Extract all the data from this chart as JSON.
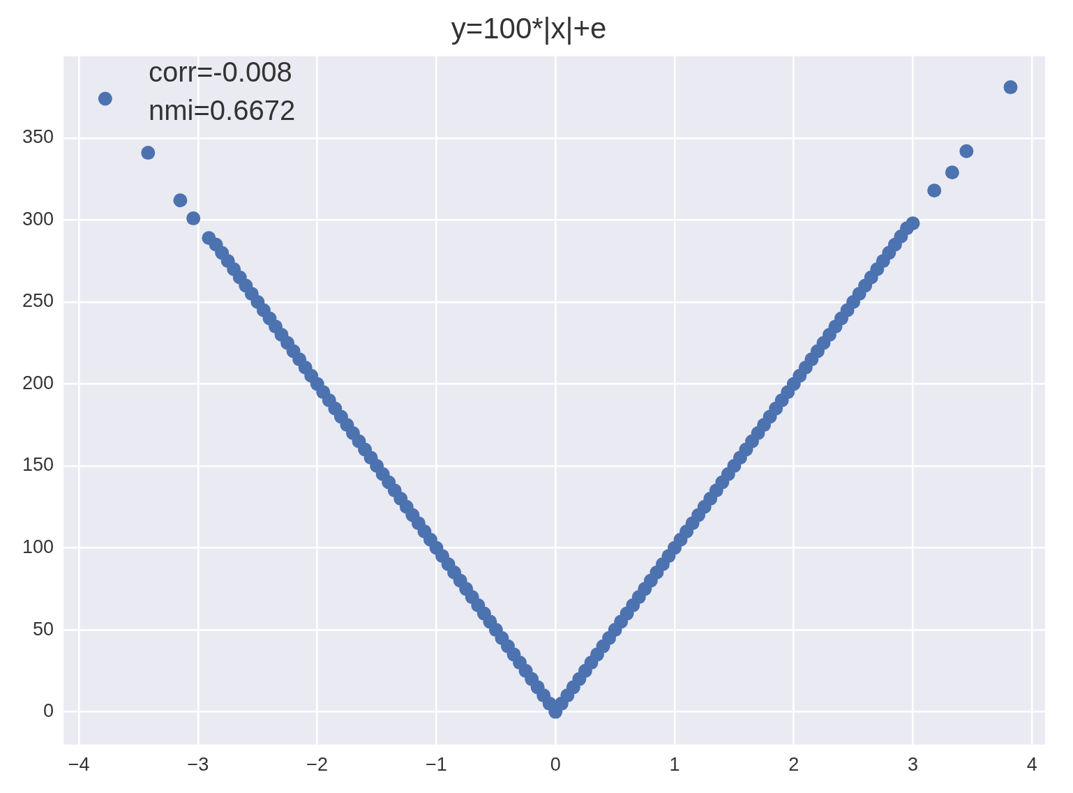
{
  "chart_data": {
    "type": "scatter",
    "title": "y=100*|x|+e",
    "annotations": [
      "corr=-0.008",
      "nmi=0.6672"
    ],
    "x": [
      -3.78,
      -3.42,
      -3.15,
      -3.04,
      -2.91,
      -2.85,
      -2.8,
      -2.75,
      -2.7,
      -2.65,
      -2.6,
      -2.55,
      -2.5,
      -2.45,
      -2.4,
      -2.35,
      -2.3,
      -2.25,
      -2.2,
      -2.15,
      -2.1,
      -2.05,
      -2.0,
      -1.95,
      -1.9,
      -1.85,
      -1.8,
      -1.75,
      -1.7,
      -1.65,
      -1.6,
      -1.55,
      -1.5,
      -1.45,
      -1.4,
      -1.35,
      -1.3,
      -1.25,
      -1.2,
      -1.15,
      -1.1,
      -1.05,
      -1.0,
      -0.95,
      -0.9,
      -0.85,
      -0.8,
      -0.75,
      -0.7,
      -0.65,
      -0.6,
      -0.55,
      -0.5,
      -0.45,
      -0.4,
      -0.35,
      -0.3,
      -0.25,
      -0.2,
      -0.15,
      -0.1,
      -0.05,
      0,
      0.05,
      0.1,
      0.15,
      0.2,
      0.25,
      0.3,
      0.35,
      0.4,
      0.45,
      0.5,
      0.55,
      0.6,
      0.65,
      0.7,
      0.75,
      0.8,
      0.85,
      0.9,
      0.95,
      1.0,
      1.05,
      1.1,
      1.15,
      1.2,
      1.25,
      1.3,
      1.35,
      1.4,
      1.45,
      1.5,
      1.55,
      1.6,
      1.65,
      1.7,
      1.75,
      1.8,
      1.85,
      1.9,
      1.95,
      2.0,
      2.05,
      2.1,
      2.15,
      2.2,
      2.25,
      2.3,
      2.35,
      2.4,
      2.45,
      2.5,
      2.55,
      2.6,
      2.65,
      2.7,
      2.75,
      2.8,
      2.85,
      2.9,
      2.95,
      3.0,
      3.18,
      3.33,
      3.45,
      3.82
    ],
    "values": [
      374,
      341,
      312,
      301,
      289,
      285,
      280,
      275,
      270,
      265,
      260,
      255,
      250,
      245,
      240,
      235,
      230,
      225,
      220,
      215,
      210,
      205,
      200,
      195,
      190,
      185,
      180,
      175,
      170,
      165,
      160,
      155,
      150,
      145,
      140,
      135,
      130,
      125,
      120,
      115,
      110,
      105,
      100,
      95,
      90,
      85,
      80,
      75,
      70,
      65,
      60,
      55,
      50,
      45,
      40,
      35,
      30,
      25,
      20,
      15,
      10,
      5,
      0,
      5,
      10,
      15,
      20,
      25,
      30,
      35,
      40,
      45,
      50,
      55,
      60,
      65,
      70,
      75,
      80,
      85,
      90,
      95,
      100,
      105,
      110,
      115,
      120,
      125,
      130,
      135,
      140,
      145,
      150,
      155,
      160,
      165,
      170,
      175,
      180,
      185,
      190,
      195,
      200,
      205,
      210,
      215,
      220,
      225,
      230,
      235,
      240,
      245,
      250,
      255,
      260,
      265,
      270,
      275,
      280,
      285,
      290,
      295,
      298,
      318,
      329,
      342,
      381
    ],
    "color": "#4c72b0",
    "marker": "circle",
    "grid": true,
    "xlim": [
      -4.13,
      4.11
    ],
    "xticks": [
      {
        "value": -4,
        "label": "−4"
      },
      {
        "value": -3,
        "label": "−3"
      },
      {
        "value": -2,
        "label": "−2"
      },
      {
        "value": -1,
        "label": "−1"
      },
      0,
      1,
      2,
      3,
      4
    ],
    "ylim": [
      -20,
      400
    ],
    "yticks": [
      0,
      50,
      100,
      150,
      200,
      250,
      300,
      350
    ]
  }
}
